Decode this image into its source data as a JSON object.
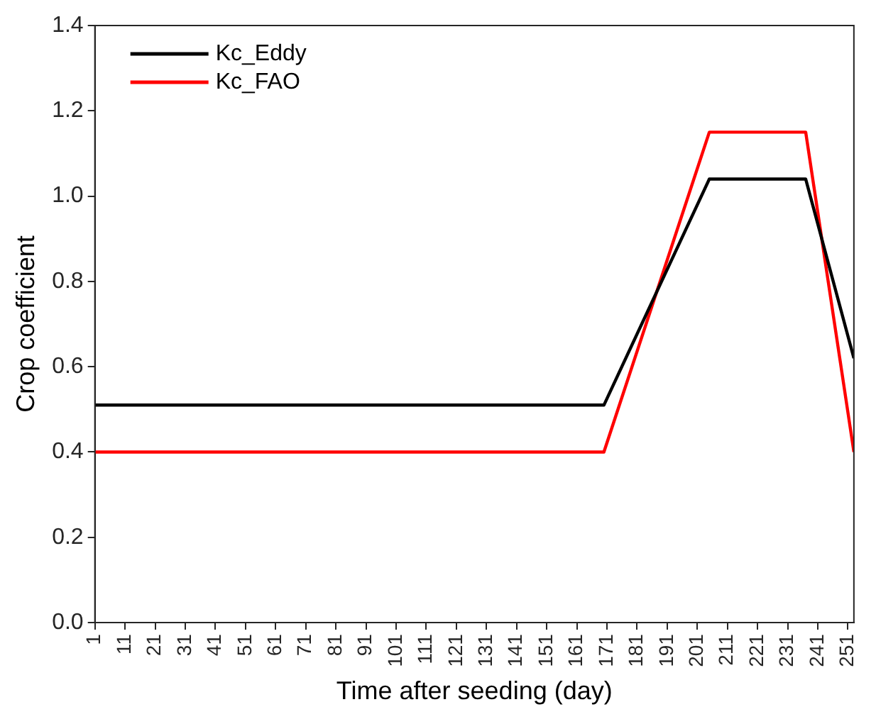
{
  "chart_data": {
    "type": "line",
    "xlabel": "Time after seeding (day)",
    "ylabel": "Crop coefficient",
    "x": [
      1,
      170,
      205,
      237,
      253
    ],
    "series": [
      {
        "name": "Kc_Eddy",
        "color": "#000000",
        "values": [
          0.51,
          0.51,
          1.04,
          1.04,
          0.62
        ]
      },
      {
        "name": "Kc_FAO",
        "color": "#ff0000",
        "values": [
          0.4,
          0.4,
          1.15,
          1.15,
          0.4
        ]
      }
    ],
    "xlim": [
      1,
      253
    ],
    "xticks": [
      1,
      11,
      21,
      31,
      41,
      51,
      61,
      71,
      81,
      91,
      101,
      111,
      121,
      131,
      141,
      151,
      161,
      171,
      181,
      191,
      201,
      211,
      221,
      231,
      241,
      251
    ],
    "ylim": [
      0,
      1.4
    ],
    "yticks": [
      {
        "value": 0,
        "label": "0.0"
      },
      {
        "value": 0.2,
        "label": "0.2"
      },
      {
        "value": 0.4,
        "label": "0.4"
      },
      {
        "value": 0.6,
        "label": "0.6"
      },
      {
        "value": 0.8,
        "label": "0.8"
      },
      {
        "value": 1,
        "label": "1.0"
      },
      {
        "value": 1.2,
        "label": "1.2"
      },
      {
        "value": 1.4,
        "label": "1.4"
      }
    ],
    "grid": false,
    "legend": "top left",
    "marker": "none",
    "line_style": "solid"
  }
}
